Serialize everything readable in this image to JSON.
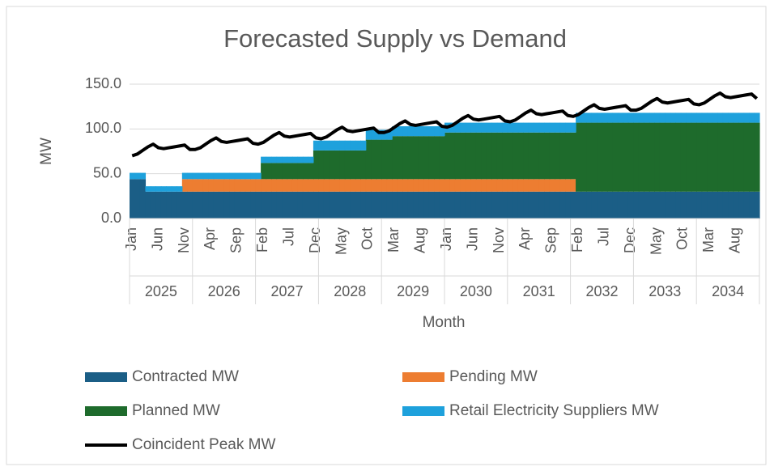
{
  "chart_data": {
    "type": "stacked_area_line",
    "title": "Forecasted Supply vs Demand",
    "ylabel": "MW",
    "xlabel": "Month",
    "ylim": [
      0,
      150
    ],
    "yticks": [
      {
        "value": 0,
        "label": "0.0"
      },
      {
        "value": 50,
        "label": "50.0"
      },
      {
        "value": 100,
        "label": "100.0"
      },
      {
        "value": 150,
        "label": "150.0"
      }
    ],
    "grid": true,
    "legend": "bottom",
    "years": [
      "2025",
      "2026",
      "2027",
      "2028",
      "2029",
      "2030",
      "2031",
      "2032",
      "2033",
      "2034"
    ],
    "categories": [
      "Jan",
      null,
      null,
      null,
      null,
      "Jun",
      null,
      null,
      null,
      null,
      "Nov",
      null,
      null,
      null,
      null,
      "Apr",
      null,
      null,
      null,
      null,
      "Sep",
      null,
      null,
      null,
      null,
      "Feb",
      null,
      null,
      null,
      null,
      "Jul",
      null,
      null,
      null,
      null,
      "Dec",
      null,
      null,
      null,
      null,
      "May",
      null,
      null,
      null,
      null,
      "Oct",
      null,
      null,
      null,
      null,
      "Mar",
      null,
      null,
      null,
      null,
      "Aug",
      null,
      null,
      null,
      null,
      "Jan",
      null,
      null,
      null,
      null,
      "Jun",
      null,
      null,
      null,
      null,
      "Nov",
      null,
      null,
      null,
      null,
      "Apr",
      null,
      null,
      null,
      null,
      "Sep",
      null,
      null,
      null,
      null,
      "Feb",
      null,
      null,
      null,
      null,
      "Jul",
      null,
      null,
      null,
      null,
      "Dec",
      null,
      null,
      null,
      null,
      "May",
      null,
      null,
      null,
      null,
      "Oct",
      null,
      null,
      null,
      null,
      "Mar",
      null,
      null,
      null,
      null,
      "Aug",
      null,
      null,
      null,
      null
    ],
    "series": [
      {
        "name": "Contracted MW",
        "type": "area",
        "color": "#1b5e86",
        "values": [
          44,
          44,
          44,
          30,
          30,
          30,
          30,
          30,
          30,
          30,
          30,
          30,
          30,
          30,
          30,
          30,
          30,
          30,
          30,
          30,
          30,
          30,
          30,
          30,
          30,
          30,
          30,
          30,
          30,
          30,
          30,
          30,
          30,
          30,
          30,
          30,
          30,
          30,
          30,
          30,
          30,
          30,
          30,
          30,
          30,
          30,
          30,
          30,
          30,
          30,
          30,
          30,
          30,
          30,
          30,
          30,
          30,
          30,
          30,
          30,
          30,
          30,
          30,
          30,
          30,
          30,
          30,
          30,
          30,
          30,
          30,
          30,
          30,
          30,
          30,
          30,
          30,
          30,
          30,
          30,
          30,
          30,
          30,
          30,
          30,
          30,
          30,
          30,
          30,
          30,
          30,
          30,
          30,
          30,
          30,
          30,
          30,
          30,
          30,
          30,
          30,
          30,
          30,
          30,
          30,
          30,
          30,
          30,
          30,
          30,
          30,
          30,
          30,
          30,
          30,
          30,
          30,
          30,
          30,
          30
        ]
      },
      {
        "name": "Pending MW",
        "type": "area",
        "color": "#ed7d31",
        "values": [
          0,
          0,
          0,
          0,
          0,
          0,
          0,
          0,
          0,
          0,
          14,
          14,
          14,
          14,
          14,
          14,
          14,
          14,
          14,
          14,
          14,
          14,
          14,
          14,
          14,
          14,
          14,
          14,
          14,
          14,
          14,
          14,
          14,
          14,
          14,
          14,
          14,
          14,
          14,
          14,
          14,
          14,
          14,
          14,
          14,
          14,
          14,
          14,
          14,
          14,
          14,
          14,
          14,
          14,
          14,
          14,
          14,
          14,
          14,
          14,
          14,
          14,
          14,
          14,
          14,
          14,
          14,
          14,
          14,
          14,
          14,
          14,
          14,
          14,
          14,
          14,
          14,
          14,
          14,
          14,
          14,
          14,
          14,
          14,
          14,
          0,
          0,
          0,
          0,
          0,
          0,
          0,
          0,
          0,
          0,
          0,
          0,
          0,
          0,
          0,
          0,
          0,
          0,
          0,
          0,
          0,
          0,
          0,
          0,
          0,
          0,
          0,
          0,
          0,
          0,
          0,
          0,
          0,
          0,
          0
        ]
      },
      {
        "name": "Planned MW",
        "type": "area",
        "color": "#1e6b2c",
        "values": [
          0,
          0,
          0,
          0,
          0,
          0,
          0,
          0,
          0,
          0,
          0,
          0,
          0,
          0,
          0,
          0,
          0,
          0,
          0,
          0,
          0,
          0,
          0,
          0,
          0,
          18,
          18,
          18,
          18,
          18,
          18,
          18,
          18,
          18,
          18,
          32,
          32,
          32,
          32,
          32,
          32,
          32,
          32,
          32,
          32,
          44,
          44,
          44,
          44,
          44,
          48,
          48,
          48,
          48,
          48,
          48,
          48,
          48,
          48,
          48,
          52,
          52,
          52,
          52,
          52,
          52,
          52,
          52,
          52,
          52,
          52,
          52,
          52,
          52,
          52,
          52,
          52,
          52,
          52,
          52,
          52,
          52,
          52,
          52,
          52,
          77,
          77,
          77,
          77,
          77,
          77,
          77,
          77,
          77,
          77,
          77,
          77,
          77,
          77,
          77,
          77,
          77,
          77,
          77,
          77,
          77,
          77,
          77,
          77,
          77,
          77,
          77,
          77,
          77,
          77,
          77,
          77,
          77,
          77,
          77
        ]
      },
      {
        "name": "Retail Electricity Suppliers MW",
        "type": "area",
        "color": "#1ea1dc",
        "values": [
          7,
          7,
          7,
          6,
          6,
          6,
          6,
          6,
          6,
          6,
          7,
          7,
          7,
          7,
          7,
          7,
          7,
          7,
          7,
          7,
          7,
          7,
          7,
          7,
          7,
          7,
          7,
          7,
          7,
          7,
          7,
          7,
          7,
          7,
          7,
          11,
          11,
          11,
          11,
          11,
          11,
          11,
          11,
          11,
          11,
          11,
          11,
          11,
          11,
          11,
          11,
          11,
          11,
          11,
          11,
          11,
          11,
          11,
          11,
          11,
          11,
          11,
          11,
          11,
          11,
          11,
          11,
          11,
          11,
          11,
          11,
          11,
          11,
          11,
          11,
          11,
          11,
          11,
          11,
          11,
          11,
          11,
          11,
          11,
          11,
          11,
          11,
          11,
          11,
          11,
          11,
          11,
          11,
          11,
          11,
          11,
          11,
          11,
          11,
          11,
          11,
          11,
          11,
          11,
          11,
          11,
          11,
          11,
          11,
          11,
          11,
          11,
          11,
          11,
          11,
          11,
          11,
          11,
          11,
          11
        ]
      },
      {
        "name": "Coincident Peak MW",
        "type": "line",
        "color": "#000000",
        "values": [
          70,
          72,
          76,
          80,
          83,
          79,
          78,
          79,
          80,
          81,
          82,
          77,
          77,
          79,
          83,
          87,
          90,
          86,
          85,
          86,
          87,
          88,
          89,
          84,
          83,
          85,
          89,
          93,
          96,
          92,
          91,
          92,
          93,
          94,
          95,
          90,
          89,
          91,
          95,
          99,
          102,
          98,
          97,
          98,
          99,
          100,
          101,
          96,
          96,
          98,
          102,
          106,
          109,
          105,
          104,
          105,
          106,
          107,
          108,
          103,
          102,
          104,
          108,
          112,
          115,
          111,
          110,
          111,
          112,
          113,
          114,
          109,
          108,
          110,
          114,
          118,
          121,
          117,
          116,
          117,
          118,
          119,
          120,
          115,
          114,
          116,
          120,
          124,
          127,
          123,
          122,
          123,
          124,
          125,
          126,
          121,
          121,
          123,
          127,
          131,
          134,
          130,
          129,
          130,
          131,
          132,
          133,
          128,
          127,
          129,
          133,
          137,
          140,
          136,
          135,
          136,
          137,
          138,
          139,
          134
        ]
      }
    ]
  }
}
